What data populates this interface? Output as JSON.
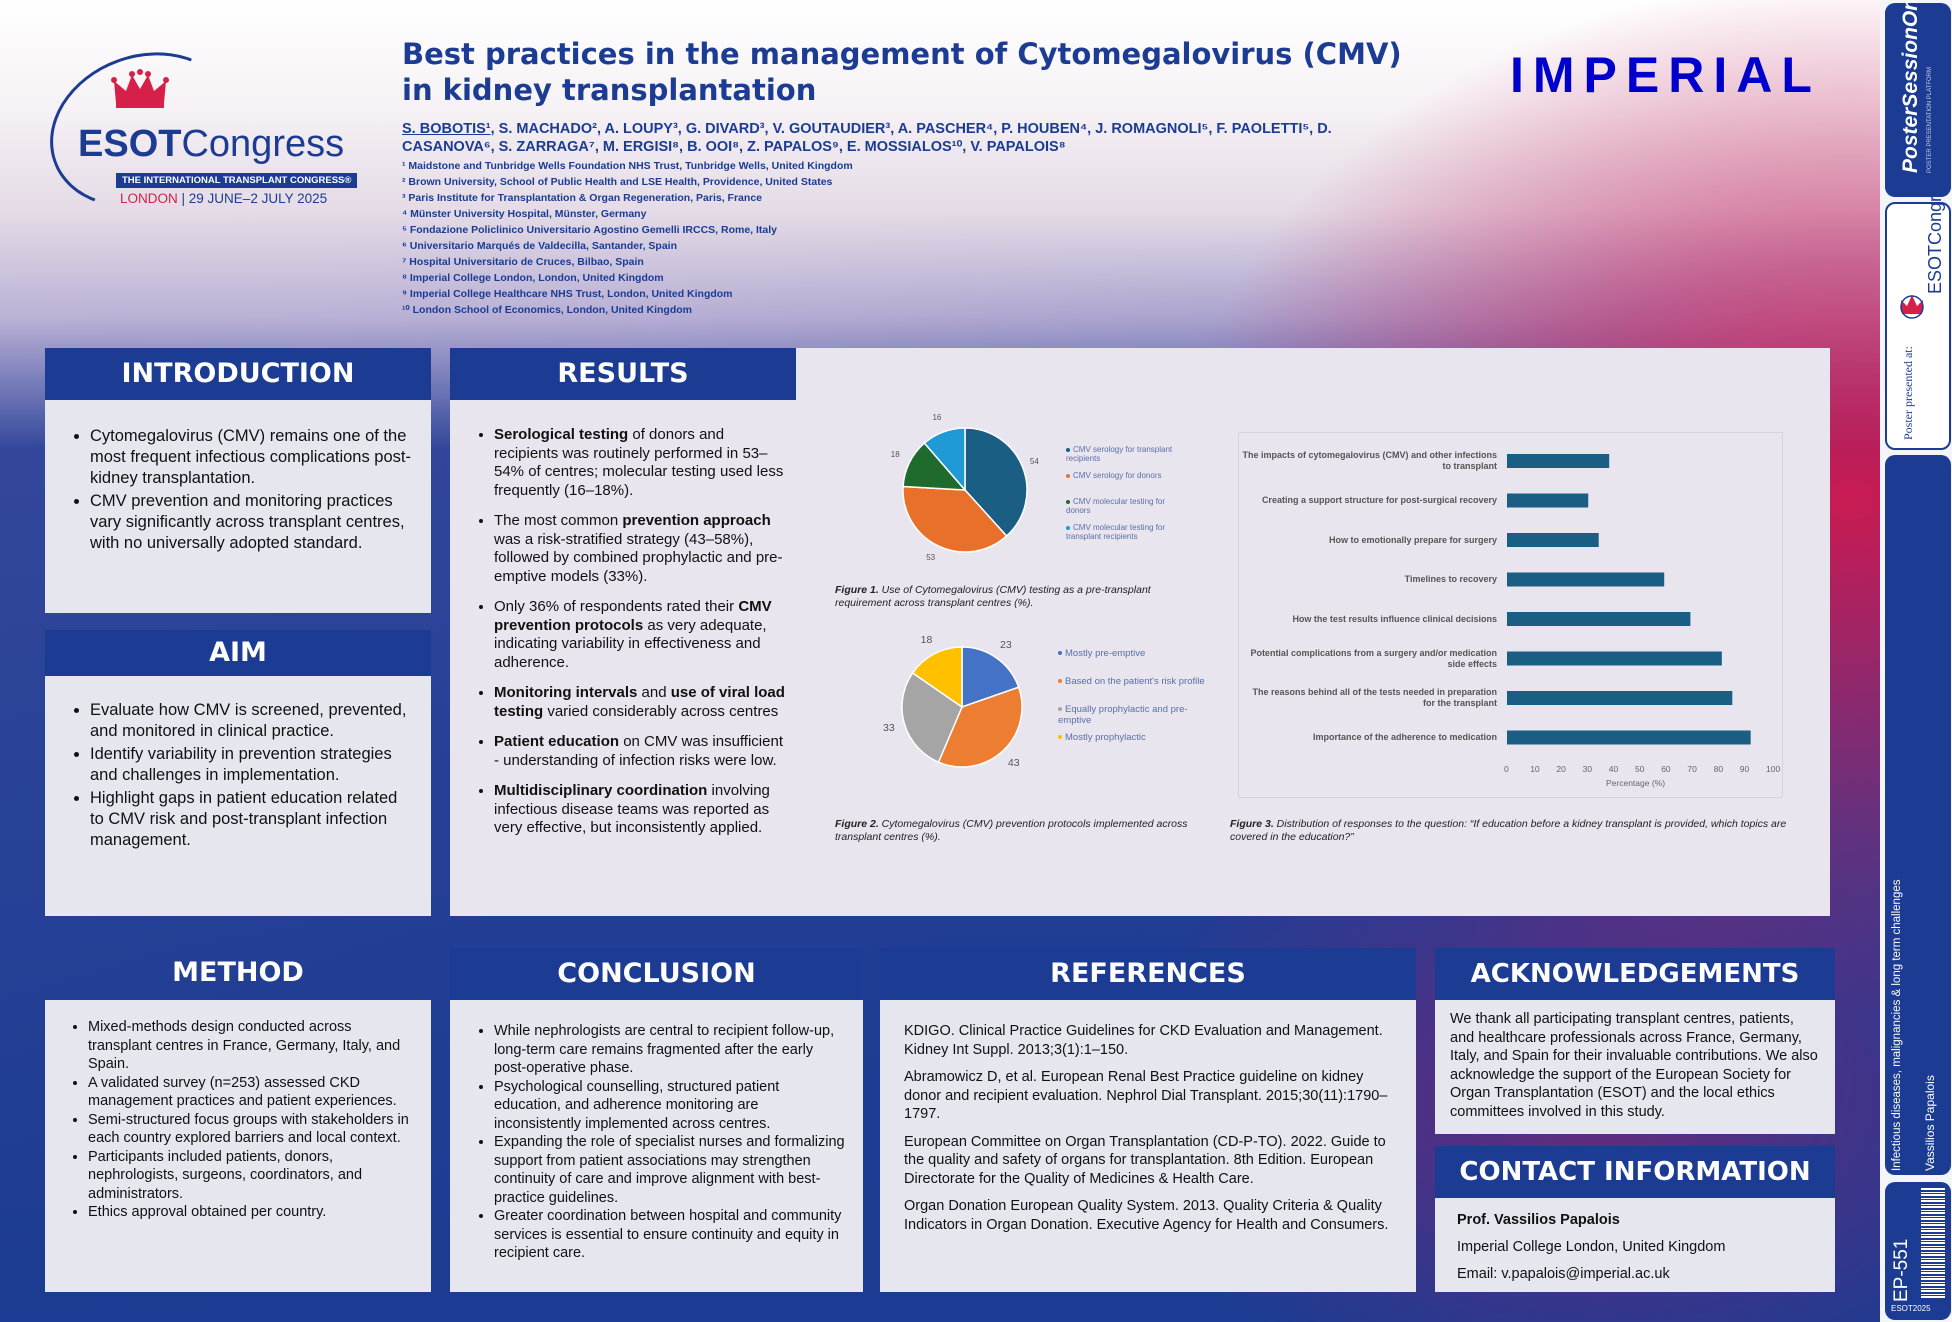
{
  "title": "Best practices in the management of Cytomegalovirus (CMV) in kidney transplantation",
  "logo": {
    "brand_bold": "ESOT",
    "brand_light": "Congress",
    "tagline": "THE INTERNATIONAL TRANSPLANT CONGRESS®",
    "city": "LONDON",
    "dates": "| 29 JUNE–2 JULY 2025"
  },
  "imperial": "IMPERIAL",
  "authors": {
    "first": "S. BOBOTIS¹",
    "rest": ", S. MACHADO², A. LOUPY³, G. DIVARD³, V. GOUTAUDIER³, A. PASCHER⁴, P. HOUBEN⁴, J. ROMAGNOLI⁵, F. PAOLETTI⁵, D. CASANOVA⁶, S. ZARRAGA⁷, M. ERGISI⁸, B. OOI⁸, Z. PAPALOS⁹, E. MOSSIALOS¹⁰, V. PAPALOIS⁸"
  },
  "affiliations": [
    "¹ Maidstone and Tunbridge Wells Foundation NHS Trust, Tunbridge Wells, United Kingdom",
    "² Brown University, School of Public Health and LSE Health, Providence, United States",
    "³ Paris Institute for Transplantation & Organ Regeneration, Paris, France",
    "⁴ Münster University Hospital, Münster, Germany",
    "⁵ Fondazione Policlinico Universitario Agostino Gemelli IRCCS, Rome, Italy",
    "⁶ Universitario Marqués de Valdecilla, Santander, Spain",
    "⁷ Hospital Universitario de Cruces, Bilbao, Spain",
    "⁸ Imperial College London, London, United Kingdom",
    "⁹ Imperial College Healthcare NHS Trust, London, United Kingdom",
    "¹⁰ London School of Economics, London, United Kingdom"
  ],
  "introduction": {
    "heading": "INTRODUCTION",
    "items": [
      "Cytomegalovirus (CMV) remains one of the most frequent infectious complications post-kidney transplantation.",
      "CMV prevention and monitoring practices vary significantly across transplant centres, with no universally adopted standard."
    ]
  },
  "aim": {
    "heading": "AIM",
    "items": [
      "Evaluate how CMV is screened, prevented, and monitored in clinical practice.",
      "Identify variability in prevention strategies and challenges in implementation.",
      "Highlight gaps in patient education related to CMV risk and post-transplant infection management."
    ]
  },
  "results": {
    "heading": "RESULTS",
    "items": [
      {
        "bold": "Serological testing",
        "text": " of donors and recipients was routinely performed in 53–54% of centres; molecular testing used less frequently (16–18%)."
      },
      {
        "pre": "The most common ",
        "bold": "prevention approach",
        "text": " was a risk-stratified strategy (43–58%), followed by combined prophylactic and pre-emptive models (33%)."
      },
      {
        "pre": "Only 36% of respondents rated their ",
        "bold": "CMV prevention protocols",
        "text": " as very adequate, indicating variability in effectiveness and adherence."
      },
      {
        "bold": "Monitoring intervals",
        "mid": " and ",
        "bold2": "use of viral load testing",
        "text": " varied considerably across centres"
      },
      {
        "bold": "Patient education",
        "text": " on CMV was insufficient - understanding of infection risks were low."
      },
      {
        "bold": "Multidisciplinary coordination",
        "text": " involving infectious disease teams was reported as very effective, but inconsistently applied."
      }
    ]
  },
  "figures": {
    "fig1_label": "Figure 1.",
    "fig1_caption": " Use of Cytomegalovirus (CMV) testing as a pre-transplant requirement across transplant centres (%).",
    "fig2_label": "Figure 2.",
    "fig2_caption": " Cytomegalovirus (CMV) prevention protocols implemented across transplant centres (%).",
    "fig3_label": "Figure 3.",
    "fig3_caption": " Distribution of responses to the question: “If education before a kidney transplant is provided, which topics are covered in the education?”"
  },
  "chart_data": [
    {
      "type": "pie",
      "labels": [
        "CMV serology for transplant recipients",
        "CMV serology for donors",
        "CMV molecular testing for donors",
        "CMV molecular testing for transplant recipients"
      ],
      "values": [
        54,
        53,
        18,
        16
      ],
      "colors": [
        "#1b5e84",
        "#e8702a",
        "#1f6b2e",
        "#1f9ad6"
      ]
    },
    {
      "type": "pie",
      "labels": [
        "Mostly pre-emptive",
        "Based on the patient's risk profile",
        "Equally prophylactic and pre-emptive",
        "Mostly prophylactic"
      ],
      "values": [
        23,
        43,
        33,
        18
      ],
      "colors": [
        "#4472c4",
        "#ed7d31",
        "#a5a5a5",
        "#ffc000"
      ]
    },
    {
      "type": "bar",
      "orientation": "horizontal",
      "categories": [
        "The impacts of cytomegalovirus (CMV) and other infections to transplant",
        "Creating a support structure for post-surgical recovery",
        "How to emotionally prepare for surgery",
        "Timelines to recovery",
        "How the test results influence clinical decisions",
        "Potential complications from a surgery and/or medication side effects",
        "The reasons behind all of the tests needed in preparation for the transplant",
        "Importance of the adherence to medication"
      ],
      "values": [
        39,
        31,
        35,
        60,
        70,
        82,
        86,
        93
      ],
      "xlim": [
        0,
        100
      ],
      "ticks": [
        "0",
        "10",
        "20",
        "30",
        "40",
        "50",
        "60",
        "70",
        "80",
        "90",
        "100"
      ],
      "xlabel": "Percentage (%)",
      "color": "#1b5e84"
    }
  ],
  "method": {
    "heading": "METHOD",
    "items": [
      "Mixed-methods design conducted across transplant centres in France, Germany, Italy, and Spain.",
      "A validated survey (n=253) assessed CKD management practices and patient experiences.",
      "Semi-structured focus groups with stakeholders in each country explored barriers and local context.",
      "Participants included patients, donors, nephrologists, surgeons, coordinators, and administrators.",
      "Ethics approval obtained per country."
    ]
  },
  "conclusion": {
    "heading": "CONCLUSION",
    "items": [
      "While nephrologists are central to recipient follow-up, long-term care remains fragmented after the early post-operative phase.",
      "Psychological counselling, structured patient education, and adherence monitoring are inconsistently implemented across centres.",
      "Expanding the role of specialist nurses and formalizing support from patient associations may strengthen continuity of care and improve alignment with best-practice guidelines.",
      "Greater coordination between hospital and community services is essential to ensure continuity and equity in recipient care."
    ]
  },
  "references": {
    "heading": "REFERENCES",
    "items": [
      "KDIGO. Clinical Practice Guidelines for CKD Evaluation and Management. Kidney Int Suppl. 2013;3(1):1–150.",
      "Abramowicz D, et al. European Renal Best Practice guideline on kidney donor and recipient evaluation. Nephrol Dial Transplant. 2015;30(11):1790–1797.",
      "European Committee on Organ Transplantation (CD-P-TO). 2022. Guide to the quality and safety of organs for transplantation. 8th Edition. European Directorate for the Quality of Medicines & Health Care.",
      "Organ Donation European Quality System. 2013. Quality Criteria & Quality Indicators in Organ Donation. Executive Agency for Health and Consumers."
    ]
  },
  "acknowledgements": {
    "heading": "ACKNOWLEDGEMENTS",
    "text": "We thank all participating transplant centres, patients, and healthcare professionals across France, Germany, Italy, and Spain for their invaluable contributions. We also acknowledge the support of the European Society for Organ Transplantation (ESOT) and the local ethics committees involved in this study."
  },
  "contact": {
    "heading": "CONTACT INFORMATION",
    "name": "Prof. Vassilios Papalois",
    "affiliation": "Imperial College London, United Kingdom",
    "email": "Email: v.papalois@imperial.ac.uk"
  },
  "sidebar": {
    "brand_top": "PosterSessionOnline",
    "brand_sub": "POSTER PRESENTATION PLATFORM",
    "presented": "Poster presented at:",
    "congress": "ESOTCongress",
    "topic": "Infectious diseases, malignancies & long term challenges",
    "presenter": "Vassilios Papalois",
    "code": "EP-551",
    "year": "ESOT2025"
  }
}
